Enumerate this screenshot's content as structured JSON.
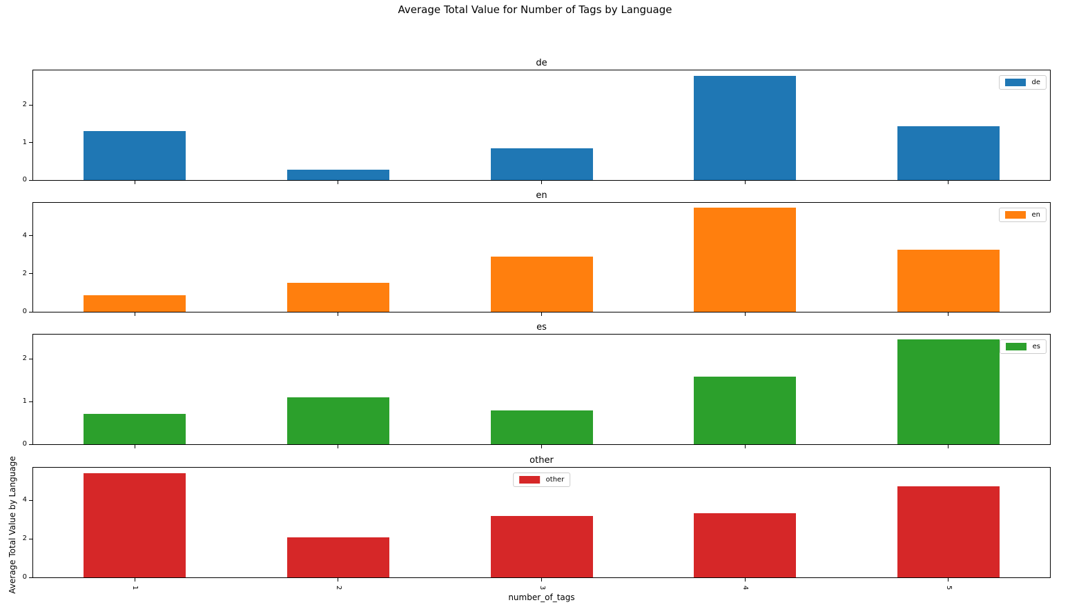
{
  "figure": {
    "background": "#ffffff",
    "text_color": "#000000"
  },
  "chart_data": {
    "type": "bar",
    "title": "Average Total Value for Number of Tags by Language",
    "xlabel": "number_of_tags",
    "ylabel": "Average Total Value by Language",
    "categories": [
      "1",
      "2",
      "3",
      "4",
      "5"
    ],
    "grid": false,
    "subplots": [
      {
        "title": "de",
        "legend_label": "de",
        "legend_loc": "upper-right",
        "color": "#1f77b4",
        "values": [
          1.3,
          0.27,
          0.84,
          2.78,
          1.44
        ],
        "yticks": [
          0,
          1,
          2
        ],
        "ylim": [
          0,
          2.92
        ]
      },
      {
        "title": "en",
        "legend_label": "en",
        "legend_loc": "upper-right",
        "color": "#ff7f0e",
        "values": [
          0.87,
          1.52,
          2.88,
          5.45,
          3.27
        ],
        "yticks": [
          0,
          2,
          4
        ],
        "ylim": [
          0,
          5.72
        ]
      },
      {
        "title": "es",
        "legend_label": "es",
        "legend_loc": "upper-right",
        "color": "#2ca02c",
        "values": [
          0.71,
          1.1,
          0.79,
          1.58,
          2.45
        ],
        "yticks": [
          0,
          1,
          2
        ],
        "ylim": [
          0,
          2.57
        ]
      },
      {
        "title": "other",
        "legend_label": "other",
        "legend_loc": "upper-center",
        "color": "#d62728",
        "values": [
          5.42,
          2.07,
          3.17,
          3.34,
          4.71
        ],
        "yticks": [
          0,
          2,
          4
        ],
        "ylim": [
          0,
          5.69
        ]
      }
    ]
  }
}
